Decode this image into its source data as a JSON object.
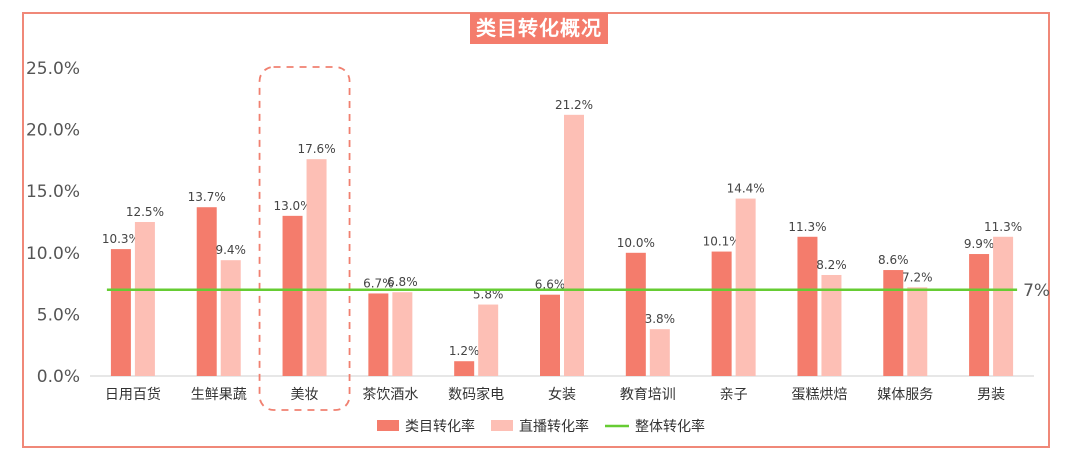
{
  "chart_data": {
    "type": "bar",
    "title": "类目转化概况",
    "categories": [
      "日用百货",
      "生鲜果蔬",
      "美妆",
      "茶饮酒水",
      "数码家电",
      "女装",
      "教育培训",
      "亲子",
      "蛋糕烘焙",
      "媒体服务",
      "男装"
    ],
    "series": [
      {
        "name": "类目转化率",
        "values": [
          10.3,
          13.7,
          13.0,
          6.7,
          1.2,
          6.6,
          10.0,
          10.1,
          11.3,
          8.6,
          9.9
        ],
        "color": "#f47c6c"
      },
      {
        "name": "直播转化率",
        "values": [
          12.5,
          9.4,
          17.6,
          6.8,
          5.8,
          21.2,
          3.8,
          14.4,
          8.2,
          7.2,
          11.3
        ],
        "color": "#fdbfb5"
      }
    ],
    "reference_line": {
      "name": "整体转化率",
      "value": 7,
      "label": "7%",
      "color": "#66cc33"
    },
    "ylim": [
      0,
      25
    ],
    "yticks": [
      "0.0%",
      "5.0%",
      "10.0%",
      "15.0%",
      "20.0%",
      "25.0%"
    ],
    "ytick_values": [
      0,
      5,
      10,
      15,
      20,
      25
    ],
    "highlighted_category": "美妆",
    "xlabel": "",
    "ylabel": "",
    "legend_position": "bottom",
    "grid": false
  }
}
